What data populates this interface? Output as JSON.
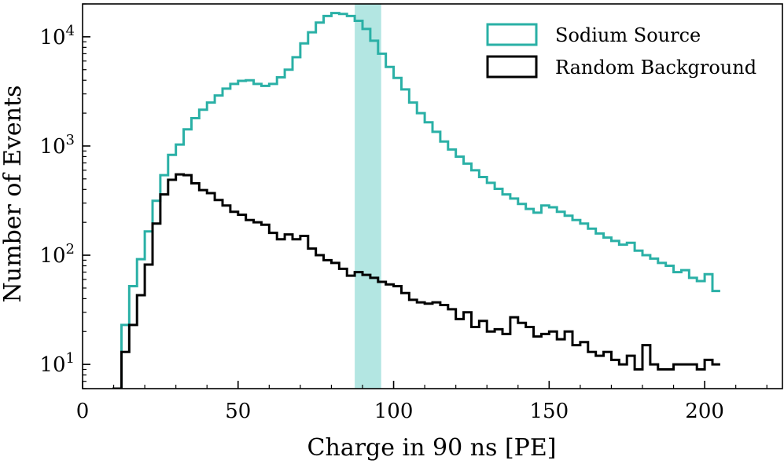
{
  "chart_data": {
    "type": "histogram",
    "title": "",
    "xlabel": "Charge in 90 ns [PE]",
    "ylabel": "Number of Events",
    "yscale": "log",
    "xlim": [
      0,
      225
    ],
    "ylim": [
      6,
      20000
    ],
    "x_ticks": [
      0,
      50,
      100,
      150,
      200
    ],
    "x_tick_labels": [
      "0",
      "50",
      "100",
      "150",
      "200"
    ],
    "y_ticks": [
      10,
      100,
      1000,
      10000
    ],
    "y_tick_labels": [
      {
        "base": "10",
        "exp": "1"
      },
      {
        "base": "10",
        "exp": "2"
      },
      {
        "base": "10",
        "exp": "3"
      },
      {
        "base": "10",
        "exp": "4"
      }
    ],
    "bin_width": 2.5,
    "bin_start": 10,
    "highlight_band": {
      "x0": 87.5,
      "x1": 96,
      "color": "#b3e6e2"
    },
    "legend_position": "top-right",
    "series": [
      {
        "name": "Sodium Source",
        "color": "#2ab0a6",
        "values": [
          6,
          23,
          52,
          92,
          165,
          315,
          540,
          830,
          1030,
          1420,
          1800,
          2150,
          2500,
          2900,
          3350,
          3700,
          3950,
          4000,
          3700,
          3550,
          3700,
          4250,
          5000,
          6500,
          8700,
          11000,
          13500,
          15500,
          16500,
          16200,
          15500,
          14000,
          11800,
          9200,
          7000,
          5300,
          4200,
          3300,
          2500,
          2000,
          1650,
          1350,
          1100,
          930,
          800,
          690,
          600,
          520,
          460,
          405,
          360,
          330,
          295,
          265,
          245,
          285,
          275,
          250,
          230,
          210,
          195,
          175,
          158,
          145,
          135,
          125,
          130,
          110,
          100,
          93,
          85,
          80,
          70,
          73,
          62,
          58,
          67,
          47
        ]
      },
      {
        "name": "Random Background",
        "color": "#000000",
        "values": [
          6,
          13,
          23,
          43,
          82,
          195,
          360,
          490,
          550,
          540,
          455,
          395,
          370,
          320,
          285,
          250,
          235,
          210,
          200,
          190,
          160,
          140,
          155,
          140,
          150,
          115,
          100,
          90,
          85,
          75,
          65,
          70,
          66,
          62,
          57,
          54,
          52,
          45,
          39,
          37,
          36,
          37,
          35,
          32,
          26,
          30,
          22,
          25,
          20,
          21,
          19,
          27,
          24,
          22,
          18,
          19,
          20,
          17,
          20,
          15,
          16,
          13,
          12,
          13,
          11,
          10,
          12,
          9,
          15,
          10,
          9,
          9,
          10,
          10,
          10,
          9,
          11,
          10
        ]
      }
    ]
  }
}
